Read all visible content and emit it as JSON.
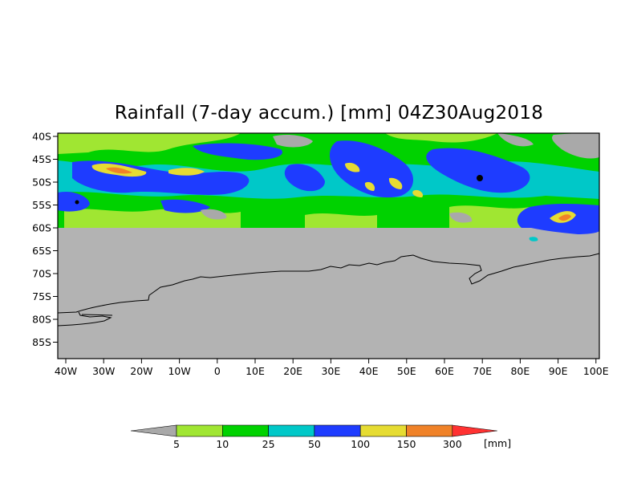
{
  "title": "Rainfall (7-day accum.) [mm] 04Z30Aug2018",
  "map": {
    "longitude_range": [
      -42,
      102
    ],
    "latitude_range": [
      -89,
      -40
    ],
    "data_extent_south": -60,
    "y_ticks": [
      "40S",
      "45S",
      "50S",
      "55S",
      "60S",
      "65S",
      "70S",
      "75S",
      "80S",
      "85S"
    ],
    "x_ticks": [
      "40W",
      "30W",
      "20W",
      "10W",
      "0",
      "10E",
      "20E",
      "30E",
      "40E",
      "50E",
      "60E",
      "70E",
      "80E",
      "90E",
      "100E"
    ],
    "land_color": "#b3b3b3",
    "coastline_color": "#000000"
  },
  "legend": {
    "unit": "[mm]",
    "bins": [
      {
        "label": "5",
        "color": "#a0e632"
      },
      {
        "label": "10",
        "color": "#00d200"
      },
      {
        "label": "25",
        "color": "#00c8c8"
      },
      {
        "label": "50",
        "color": "#1e3cff"
      },
      {
        "label": "100",
        "color": "#e6dc32"
      },
      {
        "label": "150",
        "color": "#f08228"
      },
      {
        "label": "300",
        "color": ""
      }
    ],
    "below_color": "#a9a9a9",
    "above_color": "#ff3232"
  }
}
